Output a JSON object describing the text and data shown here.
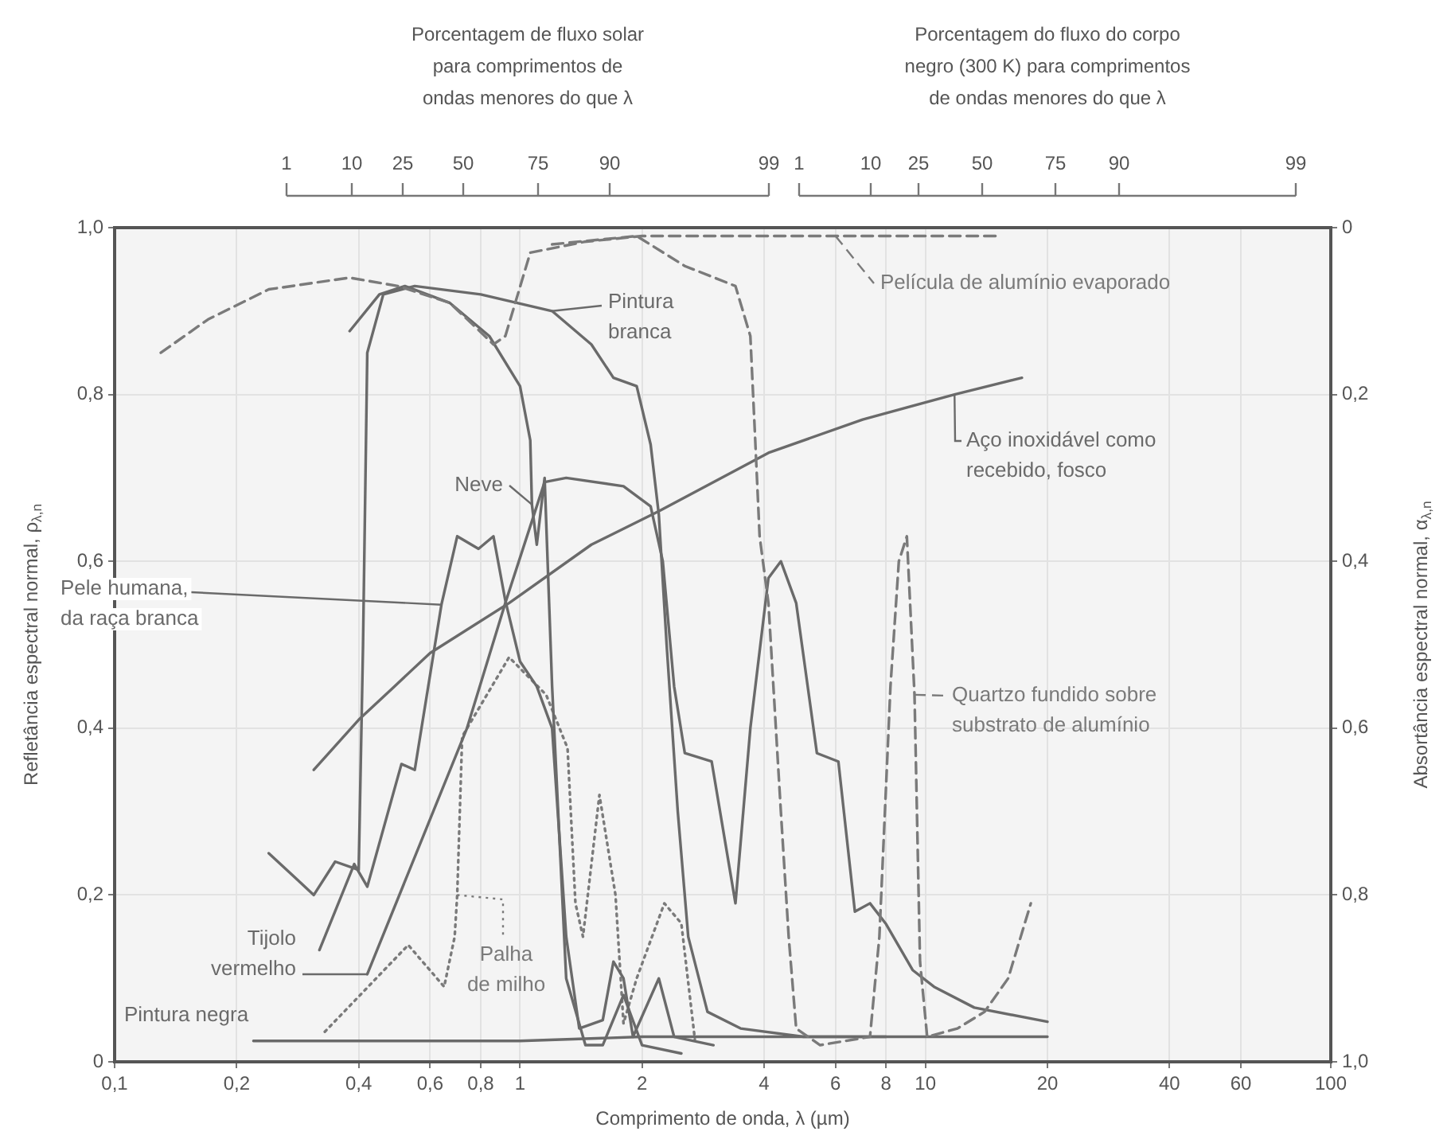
{
  "chart_data": {
    "type": "line",
    "xlabel": "Comprimento de onda, λ (µm)",
    "ylabel": "Refletância espectral normal, ρ$_{λ,n}$",
    "y2label": "Absortância espectral normal, α$_{λ,n}$",
    "x2label": "Porcentagem de fluxo solar para comprimentos de ondas menores do que λ",
    "annotations": [
      "1",
      "10",
      "25",
      "50",
      "75",
      "90",
      "99",
      "Porcentagem do fluxo do corpo negro (300 K) para comprimentos de ondas menores do que λ",
      "1",
      "10",
      "25",
      "50",
      "75",
      "90",
      "99"
    ],
    "log": "x",
    "grid": true,
    "legend": "right",
    "marker": "none",
    "xlim": [
      0.1,
      100
    ],
    "xticks": [
      {
        "value": 0.1,
        "label": "0,1"
      },
      {
        "value": 0.2,
        "label": "0,2"
      },
      {
        "value": 0.4,
        "label": "0,4"
      },
      {
        "value": 0.6,
        "label": "0,6"
      },
      {
        "value": 0.8,
        "label": "0,8"
      },
      1,
      2,
      4,
      6,
      8,
      10,
      20,
      40,
      60,
      100
    ],
    "ylim": [
      0,
      1
    ],
    "yticks": [
      0,
      {
        "value": 0.2,
        "label": "0,2"
      },
      {
        "value": 0.4,
        "label": "0,4"
      },
      {
        "value": 0.6,
        "label": "0,6"
      },
      {
        "value": 0.8,
        "label": "0,8"
      },
      {
        "value": 1,
        "label": "1,0"
      }
    ],
    "y2lim": [
      1,
      0
    ],
    "y2ticks": [
      0,
      {
        "value": 0.2,
        "label": "0,2"
      },
      {
        "value": 0.4,
        "label": "0,4"
      },
      {
        "value": 0.6,
        "label": "0,6"
      },
      {
        "value": 0.8,
        "label": "0,8"
      },
      {
        "value": 1,
        "label": "1,0"
      }
    ],
    "series": [
      {
        "name": "Película de alumínio evaporado",
        "color": "#7a7a7a",
        "line_style": "dashed",
        "x": [
          0.13,
          0.17,
          0.24,
          0.38,
          0.5,
          0.67,
          0.78,
          0.86,
          0.92,
          1.06,
          1.44,
          2,
          6,
          15
        ],
        "values": [
          0.85,
          0.89,
          0.926,
          0.94,
          0.93,
          0.91,
          0.88,
          0.86,
          0.87,
          0.97,
          0.983,
          0.99,
          0.99,
          0.99
        ]
      },
      {
        "name": "Quartzo fundido sobre substrato de alumínio",
        "color": "#7a7a7a",
        "line_style": "dashed",
        "x": [
          1.2,
          1.94,
          2.55,
          3.4,
          3.7,
          3.8,
          3.9,
          4.1,
          4.4,
          4.6,
          4.8,
          5.5,
          7.3,
          7.7,
          8.2,
          8.6,
          9,
          9.4,
          9.7,
          10.1,
          12,
          14,
          16,
          18.2
        ],
        "values": [
          0.98,
          0.99,
          0.954,
          0.93,
          0.87,
          0.75,
          0.63,
          0.55,
          0.3,
          0.15,
          0.04,
          0.02,
          0.03,
          0.15,
          0.45,
          0.6,
          0.63,
          0.44,
          0.12,
          0.03,
          0.04,
          0.06,
          0.1,
          0.19
        ]
      },
      {
        "name": "Pintura branca",
        "color": "#6a6a6a",
        "line_style": "solid",
        "x": [
          0.24,
          0.28,
          0.31,
          0.35,
          0.4,
          0.41,
          0.42,
          0.46,
          0.55,
          0.8,
          1.2,
          1.5,
          1.7,
          1.94,
          2.1,
          2.2,
          2.3,
          2.45,
          2.6,
          2.9,
          3.5,
          5,
          8
        ],
        "values": [
          0.25,
          0.22,
          0.2,
          0.24,
          0.23,
          0.5,
          0.85,
          0.92,
          0.93,
          0.92,
          0.9,
          0.86,
          0.82,
          0.81,
          0.74,
          0.656,
          0.5,
          0.3,
          0.15,
          0.06,
          0.04,
          0.03,
          0.03
        ]
      },
      {
        "name": "Neve",
        "color": "#6a6a6a",
        "line_style": "solid",
        "x": [
          0.38,
          0.45,
          0.52,
          0.67,
          0.84,
          1,
          1.06,
          1.07,
          1.1,
          1.15,
          1.2,
          1.3,
          1.45,
          1.6,
          1.8,
          2,
          2.5
        ],
        "values": [
          0.876,
          0.92,
          0.93,
          0.91,
          0.87,
          0.81,
          0.745,
          0.668,
          0.62,
          0.7,
          0.45,
          0.1,
          0.02,
          0.02,
          0.08,
          0.02,
          0.01
        ]
      },
      {
        "name": "Aço inoxidável como recebido, fosco",
        "color": "#6a6a6a",
        "line_style": "solid",
        "x": [
          0.31,
          0.4,
          0.49,
          0.6,
          0.94,
          1.5,
          2.2,
          4.1,
          7,
          11.8,
          17.3
        ],
        "values": [
          0.35,
          0.41,
          0.45,
          0.49,
          0.55,
          0.62,
          0.66,
          0.73,
          0.77,
          0.8,
          0.82
        ]
      },
      {
        "name": "Pele humana, da raça branca",
        "color": "#6a6a6a",
        "line_style": "solid",
        "x": [
          0.32,
          0.39,
          0.42,
          0.51,
          0.55,
          0.64,
          0.7,
          0.79,
          0.86,
          0.92,
          1,
          1.1,
          1.2,
          1.3,
          1.4,
          1.6,
          1.7,
          1.8,
          1.9,
          2.2,
          2.4,
          3
        ],
        "values": [
          0.134,
          0.237,
          0.21,
          0.357,
          0.35,
          0.548,
          0.63,
          0.615,
          0.63,
          0.553,
          0.48,
          0.45,
          0.4,
          0.15,
          0.04,
          0.05,
          0.12,
          0.1,
          0.03,
          0.1,
          0.03,
          0.02
        ]
      },
      {
        "name": "Tijolo vermelho",
        "color": "#6a6a6a",
        "line_style": "solid",
        "x": [
          0.42,
          0.74,
          0.92,
          1.15,
          1.3,
          1.8,
          2.1,
          2.25,
          2.4,
          2.55,
          2.97,
          3.4,
          3.7,
          4.1,
          4.4,
          4.8,
          5.4,
          6.1,
          6.7,
          7.3,
          8,
          9.3,
          10.5,
          13.2,
          20
        ],
        "values": [
          0.105,
          0.4,
          0.55,
          0.695,
          0.7,
          0.69,
          0.666,
          0.6,
          0.45,
          0.37,
          0.36,
          0.19,
          0.4,
          0.58,
          0.6,
          0.55,
          0.37,
          0.36,
          0.18,
          0.19,
          0.165,
          0.11,
          0.09,
          0.065,
          0.048
        ]
      },
      {
        "name": "Palha de milho",
        "color": "#7a7a7a",
        "line_style": "dotted",
        "x": [
          0.33,
          0.53,
          0.65,
          0.69,
          0.7,
          0.72,
          0.94,
          1.16,
          1.31,
          1.37,
          1.43,
          1.57,
          1.72,
          1.8,
          1.94,
          2.27,
          2.5,
          2.7
        ],
        "values": [
          0.036,
          0.14,
          0.09,
          0.15,
          0.2,
          0.39,
          0.485,
          0.44,
          0.376,
          0.19,
          0.15,
          0.32,
          0.2,
          0.046,
          0.1,
          0.19,
          0.166,
          0.027
        ]
      },
      {
        "name": "Pintura negra",
        "color": "#6a6a6a",
        "line_style": "solid",
        "x": [
          0.22,
          1,
          2,
          5,
          20
        ],
        "values": [
          0.025,
          0.025,
          0.03,
          0.03,
          0.03
        ]
      }
    ]
  }
}
